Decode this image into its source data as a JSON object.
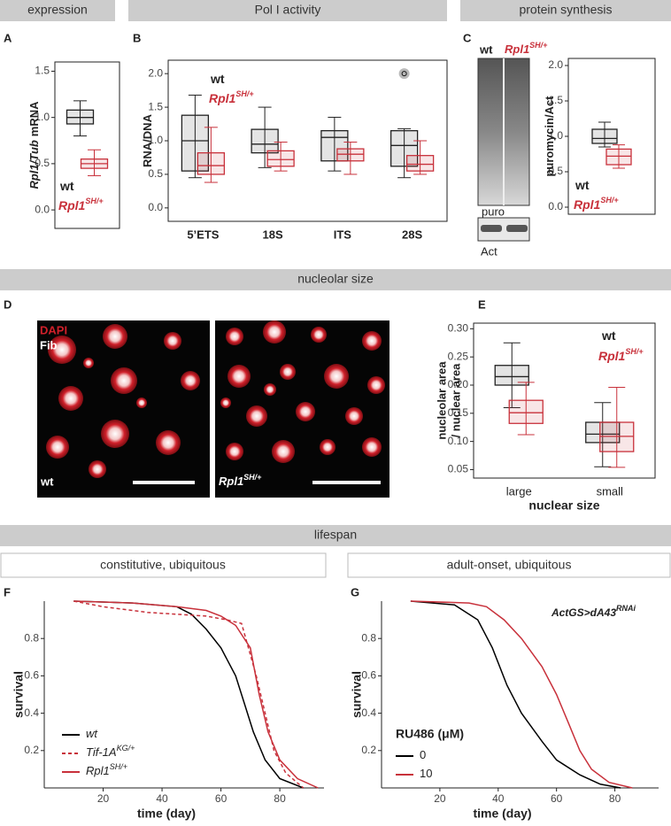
{
  "sections": {
    "expression": "expression",
    "pol1": "Pol I activity",
    "protein": "protein synthesis",
    "nucleolar": "nucleolar size",
    "lifespan": "lifespan",
    "constitutive": "constitutive, ubiquitous",
    "adult": "adult-onset, ubiquitous"
  },
  "panel_labels": [
    "A",
    "B",
    "C",
    "D",
    "E",
    "F",
    "G"
  ],
  "genotypes": {
    "wt": "wt",
    "mut": "Rpl1",
    "mut_sup": "SH/+"
  },
  "blot": {
    "puro": "puro",
    "act": "Act"
  },
  "micro": {
    "stain1": "DAPI",
    "stain2": "Fib"
  },
  "chart_data": [
    {
      "type": "box",
      "ylabel_italic": "Rpl1/Tub",
      "ylabel": "mRNA",
      "categories": [
        null
      ],
      "ylim": [
        -0.2,
        1.6
      ],
      "yticks": [
        {
          "value": 0,
          "label": "0.0"
        },
        0.5,
        {
          "value": 1,
          "label": "1.0"
        },
        1.5
      ],
      "series": [
        {
          "name": "wt",
          "color": "#222222",
          "boxes": [
            {
              "min": 0.8,
              "q1": 0.93,
              "median": 1.0,
              "q3": 1.08,
              "max": 1.18
            }
          ]
        },
        {
          "name": "Rpl1",
          "name_sup": "SH/+",
          "color": "#c8313b",
          "boxes": [
            {
              "min": 0.37,
              "q1": 0.45,
              "median": 0.5,
              "q3": 0.55,
              "max": 0.65
            }
          ]
        }
      ]
    },
    {
      "type": "box",
      "ylabel": "RNA/DNA",
      "categories": [
        "5’ETS",
        "18S",
        "ITS",
        "28S"
      ],
      "ylim": [
        -0.2,
        2.2
      ],
      "yticks": [
        {
          "value": 0,
          "label": "0.0"
        },
        0.5,
        {
          "value": 1,
          "label": "1.0"
        },
        1.5,
        {
          "value": 2,
          "label": "2.0"
        }
      ],
      "series": [
        {
          "name": "wt",
          "color": "#222222",
          "boxes": [
            {
              "min": 0.45,
              "q1": 0.55,
              "median": 1.0,
              "q3": 1.38,
              "max": 1.68
            },
            {
              "min": 0.6,
              "q1": 0.82,
              "median": 0.95,
              "q3": 1.17,
              "max": 1.5
            },
            {
              "min": 0.55,
              "q1": 0.7,
              "median": 1.05,
              "q3": 1.15,
              "max": 1.35
            },
            {
              "min": 0.45,
              "q1": 0.62,
              "median": 0.93,
              "q3": 1.15,
              "max": 1.18,
              "outliers": [
                2.0
              ]
            }
          ]
        },
        {
          "name": "Rpl1",
          "name_sup": "SH/+",
          "color": "#c8313b",
          "boxes": [
            {
              "min": 0.38,
              "q1": 0.5,
              "median": 0.63,
              "q3": 0.82,
              "max": 1.2
            },
            {
              "min": 0.55,
              "q1": 0.62,
              "median": 0.72,
              "q3": 0.85,
              "max": 0.98
            },
            {
              "min": 0.5,
              "q1": 0.7,
              "median": 0.8,
              "q3": 0.88,
              "max": 0.98
            },
            {
              "min": 0.5,
              "q1": 0.55,
              "median": 0.65,
              "q3": 0.78,
              "max": 1.0
            }
          ]
        }
      ]
    },
    {
      "type": "box",
      "ylabel": "puromycin/Act",
      "categories": [
        null
      ],
      "ylim": [
        -0.1,
        2.1
      ],
      "yticks": [
        {
          "value": 0,
          "label": "0.0"
        },
        0.5,
        {
          "value": 1,
          "label": "1.0"
        },
        1.5,
        {
          "value": 2,
          "label": "2.0"
        }
      ],
      "series": [
        {
          "name": "wt",
          "color": "#222222",
          "boxes": [
            {
              "min": 0.85,
              "q1": 0.9,
              "median": 0.97,
              "q3": 1.1,
              "max": 1.2
            }
          ]
        },
        {
          "name": "Rpl1",
          "name_sup": "SH/+",
          "color": "#c8313b",
          "boxes": [
            {
              "min": 0.55,
              "q1": 0.6,
              "median": 0.72,
              "q3": 0.82,
              "max": 0.88
            }
          ]
        }
      ]
    },
    {
      "type": "box",
      "ylabel": [
        "nucleolar area",
        "/ nuclear area"
      ],
      "xlabel": "nuclear size",
      "categories": [
        "large",
        "small"
      ],
      "ylim": [
        0.035,
        0.31
      ],
      "yticks": [
        0.05,
        {
          "value": 0.1,
          "label": "0.10"
        },
        0.15,
        {
          "value": 0.2,
          "label": "0.20"
        },
        0.25,
        {
          "value": 0.3,
          "label": "0.30"
        }
      ],
      "series": [
        {
          "name": "wt",
          "color": "#222222",
          "boxes": [
            {
              "min": 0.16,
              "q1": 0.2,
              "median": 0.215,
              "q3": 0.235,
              "max": 0.275
            },
            {
              "min": 0.055,
              "q1": 0.098,
              "median": 0.113,
              "q3": 0.134,
              "max": 0.169
            }
          ]
        },
        {
          "name": "Rpl1",
          "name_sup": "SH/+",
          "color": "#c8313b",
          "boxes": [
            {
              "min": 0.112,
              "q1": 0.132,
              "median": 0.151,
              "q3": 0.173,
              "max": 0.205
            },
            {
              "min": 0.054,
              "q1": 0.082,
              "median": 0.109,
              "q3": 0.134,
              "max": 0.196
            }
          ]
        }
      ]
    },
    {
      "type": "line",
      "xlabel": "time (day)",
      "ylabel": "survival",
      "xlim": [
        0,
        95
      ],
      "ylim": [
        0,
        1.0
      ],
      "xticks": [
        20,
        40,
        60,
        80
      ],
      "yticks": [
        0.2,
        0.4,
        0.6,
        0.8
      ],
      "series": [
        {
          "name": "wt",
          "color": "#000000",
          "italic": true,
          "x": [
            10,
            30,
            45,
            50,
            55,
            60,
            65,
            68,
            71,
            75,
            80,
            88
          ],
          "values": [
            1.0,
            0.99,
            0.97,
            0.93,
            0.85,
            0.75,
            0.6,
            0.45,
            0.3,
            0.15,
            0.05,
            0.0
          ]
        },
        {
          "name": "Tif-1A",
          "name_sup": "KG/+",
          "color": "#c8313b",
          "dashed": true,
          "italic": true,
          "x": [
            10,
            20,
            35,
            45,
            55,
            62,
            67,
            72,
            75,
            78,
            82,
            88
          ],
          "values": [
            1.0,
            0.97,
            0.94,
            0.93,
            0.92,
            0.9,
            0.88,
            0.6,
            0.4,
            0.2,
            0.08,
            0.0
          ]
        },
        {
          "name": "Rpl1",
          "name_sup": "SH/+",
          "color": "#c8313b",
          "italic": true,
          "x": [
            10,
            30,
            45,
            55,
            60,
            65,
            70,
            73,
            76,
            80,
            86,
            93
          ],
          "values": [
            1.0,
            0.99,
            0.97,
            0.95,
            0.92,
            0.87,
            0.75,
            0.5,
            0.3,
            0.15,
            0.05,
            0.0
          ]
        }
      ]
    },
    {
      "type": "line",
      "xlabel": "time (day)",
      "ylabel": "survival",
      "xlim": [
        0,
        95
      ],
      "ylim": [
        0,
        1.0
      ],
      "xticks": [
        20,
        40,
        60,
        80
      ],
      "yticks": [
        0.2,
        0.4,
        0.6,
        0.8
      ],
      "legend_title": "RU486 (μM)",
      "annotation": "ActGS>dA43",
      "annotation_sup": "RNAi",
      "series": [
        {
          "name": "0",
          "color": "#000000",
          "x": [
            10,
            25,
            33,
            38,
            43,
            48,
            55,
            60,
            68,
            75,
            82
          ],
          "values": [
            1.0,
            0.98,
            0.9,
            0.75,
            0.55,
            0.4,
            0.25,
            0.15,
            0.07,
            0.02,
            0.0
          ]
        },
        {
          "name": "10",
          "color": "#c8313b",
          "x": [
            10,
            30,
            36,
            42,
            48,
            55,
            60,
            64,
            68,
            72,
            78,
            86
          ],
          "values": [
            1.0,
            0.99,
            0.97,
            0.9,
            0.8,
            0.65,
            0.5,
            0.35,
            0.2,
            0.1,
            0.03,
            0.0
          ]
        }
      ]
    }
  ]
}
